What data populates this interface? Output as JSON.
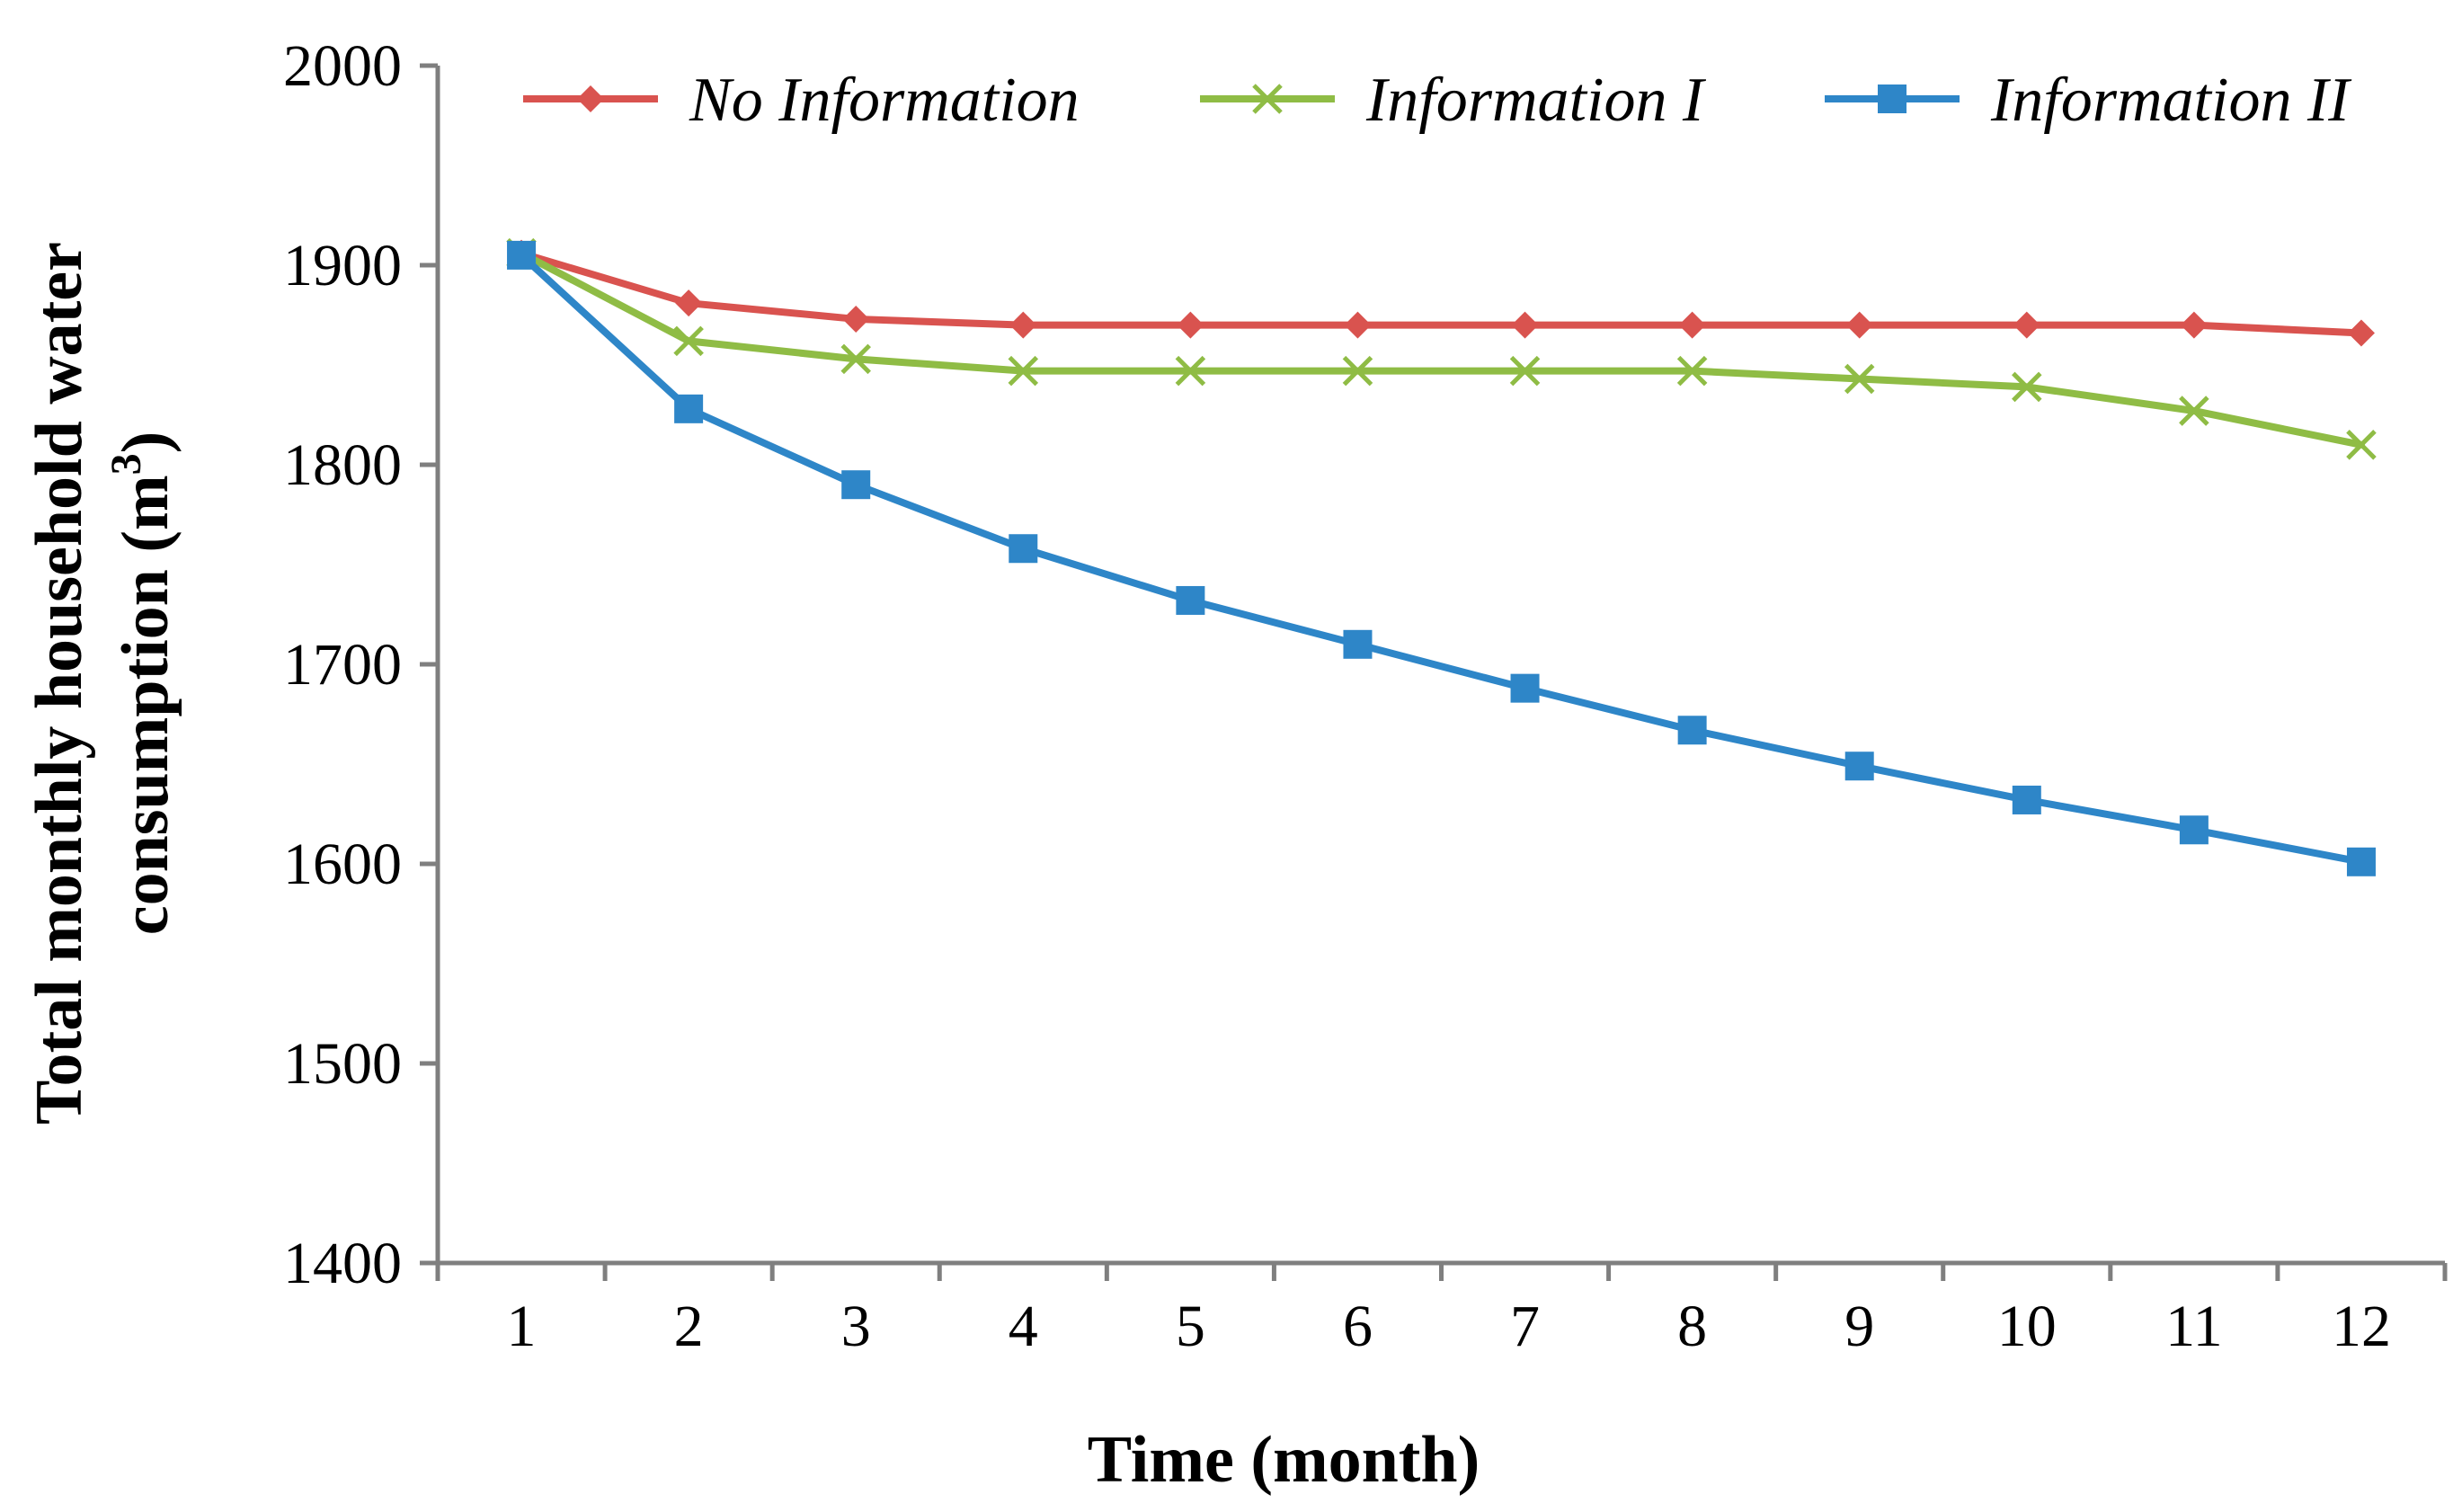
{
  "chart_data": {
    "type": "line",
    "title": "",
    "xlabel": "Time (month)",
    "ylabel_main": "Total monthly household water",
    "ylabel_second": "consumption (m",
    "ylabel_superscript": "3",
    "ylabel_close": ")",
    "categories": [
      "1",
      "2",
      "3",
      "4",
      "5",
      "6",
      "7",
      "8",
      "9",
      "10",
      "11",
      "12"
    ],
    "ylim": [
      1400,
      2000
    ],
    "yticks": [
      "1400",
      "1500",
      "1600",
      "1700",
      "1800",
      "1900",
      "2000"
    ],
    "grid": false,
    "legend_position": "top",
    "series": [
      {
        "name": "No Information",
        "color": "#d9534f",
        "marker": "diamond",
        "values": [
          1906,
          1881,
          1873,
          1870,
          1870,
          1870,
          1870,
          1870,
          1870,
          1870,
          1870,
          1866
        ]
      },
      {
        "name": "Information I",
        "color": "#8fbc45",
        "marker": "x",
        "values": [
          1906,
          1862,
          1853,
          1847,
          1847,
          1847,
          1847,
          1847,
          1843,
          1839,
          1827,
          1810
        ]
      },
      {
        "name": "Information II",
        "color": "#2e86c8",
        "marker": "square",
        "values": [
          1905,
          1828,
          1790,
          1758,
          1732,
          1710,
          1688,
          1667,
          1649,
          1632,
          1617,
          1601
        ]
      }
    ]
  }
}
